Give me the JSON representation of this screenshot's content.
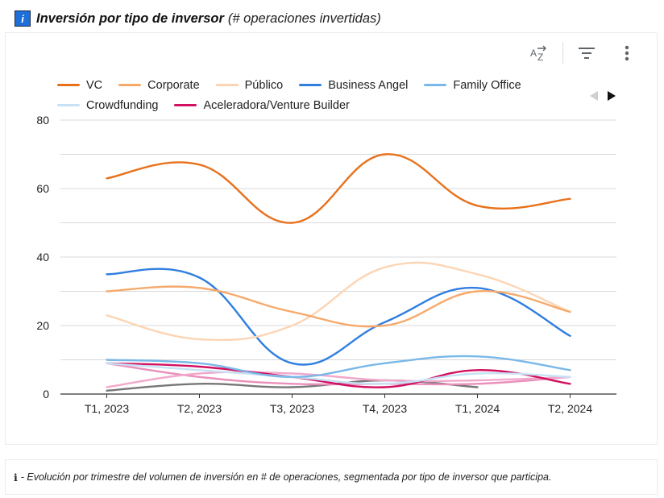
{
  "header": {
    "badge_glyph": "i",
    "title": "Inversión por tipo de inversor",
    "subtitle": "(# operaciones invertidas)"
  },
  "toolbar": {
    "sort_icon": "sort-az-icon",
    "filter_icon": "filter-icon",
    "more_icon": "more-vert-icon"
  },
  "pager": {
    "prev_icon": "triangle-left-icon",
    "next_icon": "triangle-right-icon"
  },
  "footnote": {
    "icon_glyph": "ℹ",
    "text": "- Evolución por trimestre del volumen de inversión en # de operaciones, segmentada por tipo de inversor que participa."
  },
  "chart_data": {
    "type": "line",
    "title": "Inversión por tipo de inversor",
    "categories": [
      "T1, 2023",
      "T2, 2023",
      "T3, 2023",
      "T4, 2023",
      "T1, 2024",
      "T2, 2024"
    ],
    "ylim": [
      0,
      80
    ],
    "yticks": [
      0,
      20,
      40,
      60,
      80
    ],
    "grid": true,
    "legend_position": "top-left",
    "series": [
      {
        "name": "VC",
        "color": "#e8711c",
        "values": [
          63,
          67,
          50,
          70,
          55,
          57
        ]
      },
      {
        "name": "Corporate",
        "color": "#f6a96b",
        "values": [
          30,
          31,
          24,
          20,
          30,
          24
        ]
      },
      {
        "name": "Público",
        "color": "#fbd5b5",
        "values": [
          23,
          16,
          20,
          37,
          35,
          24
        ]
      },
      {
        "name": "Business Angel",
        "color": "#2f7ee0",
        "values": [
          35,
          34,
          9,
          21,
          31,
          17
        ]
      },
      {
        "name": "Family Office",
        "color": "#79b8e8",
        "values": [
          10,
          9,
          5,
          9,
          11,
          7
        ]
      },
      {
        "name": "Crowdfunding",
        "color": "#c7e1f5",
        "values": [
          9,
          7,
          5,
          3,
          6,
          5
        ]
      },
      {
        "name": "Aceleradora/Venture Builder",
        "color": "#d1105f",
        "values": [
          9,
          8,
          5,
          2,
          7,
          3
        ]
      },
      {
        "name": "",
        "color": "#f2a7cc",
        "values": [
          2,
          6,
          6,
          4,
          4,
          5
        ]
      },
      {
        "name": "",
        "color": "#ea8fba",
        "values": [
          9,
          5,
          3,
          3,
          3,
          5
        ]
      },
      {
        "name": "",
        "color": "#777777",
        "values": [
          1,
          3,
          2,
          4,
          2,
          null
        ]
      }
    ]
  }
}
